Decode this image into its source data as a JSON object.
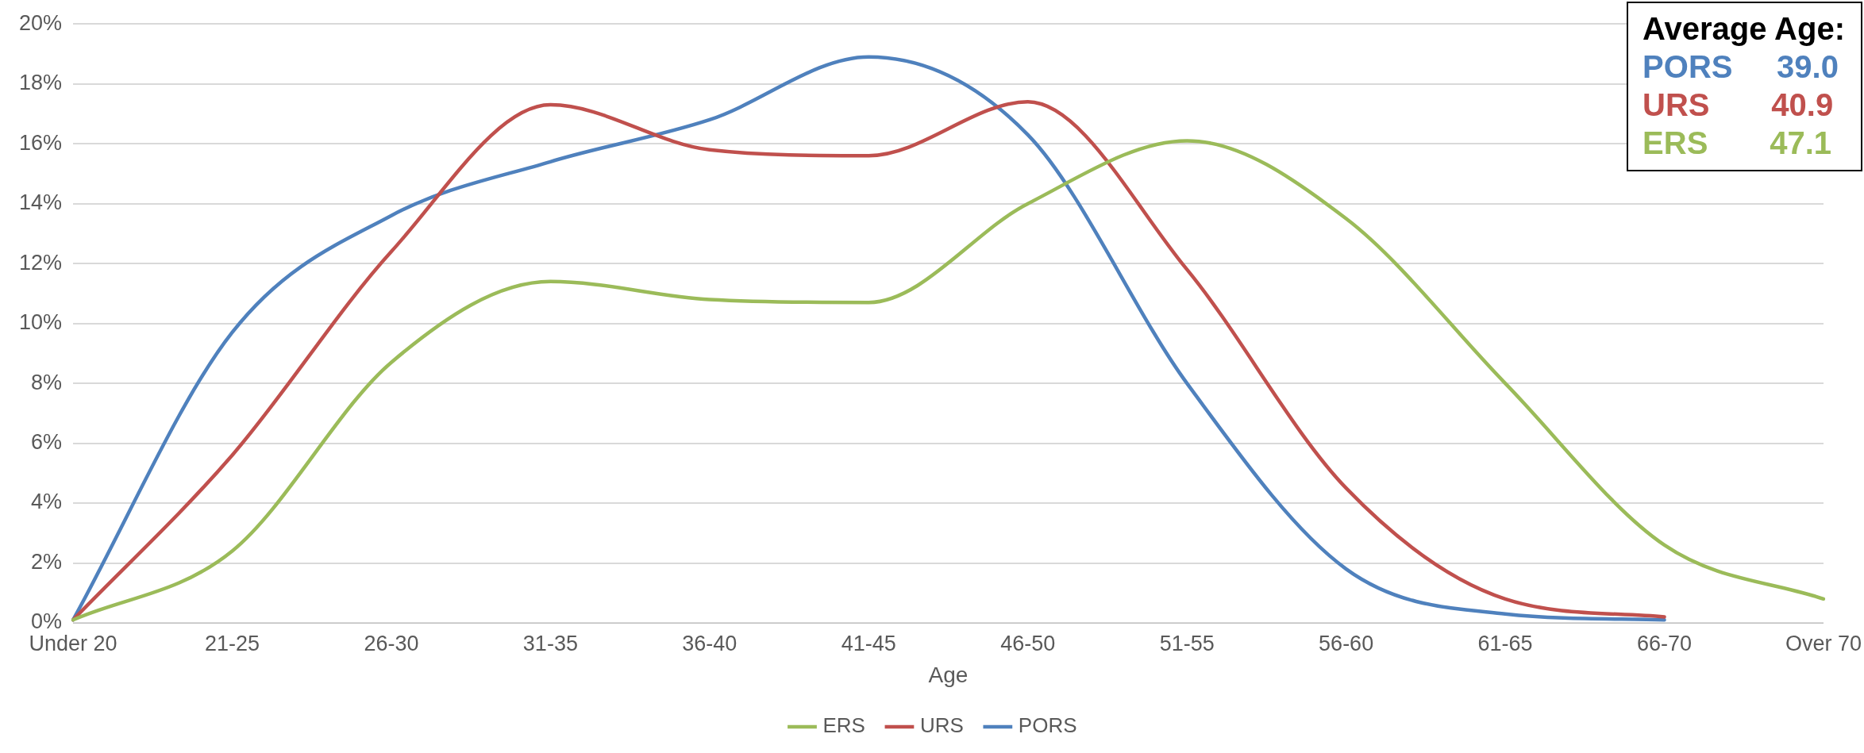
{
  "chart_data": {
    "type": "line",
    "xlabel": "Age",
    "categories": [
      "Under 20",
      "21-25",
      "26-30",
      "31-35",
      "36-40",
      "41-45",
      "46-50",
      "51-55",
      "56-60",
      "61-65",
      "66-70",
      "Over 70"
    ],
    "series": [
      {
        "name": "ERS",
        "color": "#9bbb59",
        "values": [
          0.1,
          2.4,
          8.7,
          11.4,
          10.8,
          10.7,
          14.0,
          16.1,
          13.5,
          8.0,
          2.6,
          0.8
        ]
      },
      {
        "name": "URS",
        "color": "#c0504d",
        "values": [
          0.1,
          5.6,
          12.4,
          17.3,
          15.8,
          15.6,
          17.4,
          11.8,
          4.5,
          0.8,
          0.2,
          null
        ]
      },
      {
        "name": "PORS",
        "color": "#4f81bd",
        "values": [
          0.1,
          9.7,
          13.6,
          15.4,
          16.8,
          18.9,
          16.3,
          8.0,
          1.8,
          0.3,
          0.1,
          null
        ]
      }
    ],
    "ylim": [
      0,
      20
    ],
    "yticks": [
      {
        "value": 0,
        "label": "0%"
      },
      {
        "value": 2,
        "label": "2%"
      },
      {
        "value": 4,
        "label": "4%"
      },
      {
        "value": 6,
        "label": "6%"
      },
      {
        "value": 8,
        "label": "8%"
      },
      {
        "value": 10,
        "label": "10%"
      },
      {
        "value": 12,
        "label": "12%"
      },
      {
        "value": 14,
        "label": "14%"
      },
      {
        "value": 16,
        "label": "16%"
      },
      {
        "value": 18,
        "label": "18%"
      },
      {
        "value": 20,
        "label": "20%"
      }
    ],
    "grid": "y",
    "legend": "bottom",
    "marker": "none",
    "line_style": "solid",
    "annotations": [
      "Average Age:",
      "PORS     39.0",
      "URS       40.9",
      "ERS       47.1"
    ]
  }
}
